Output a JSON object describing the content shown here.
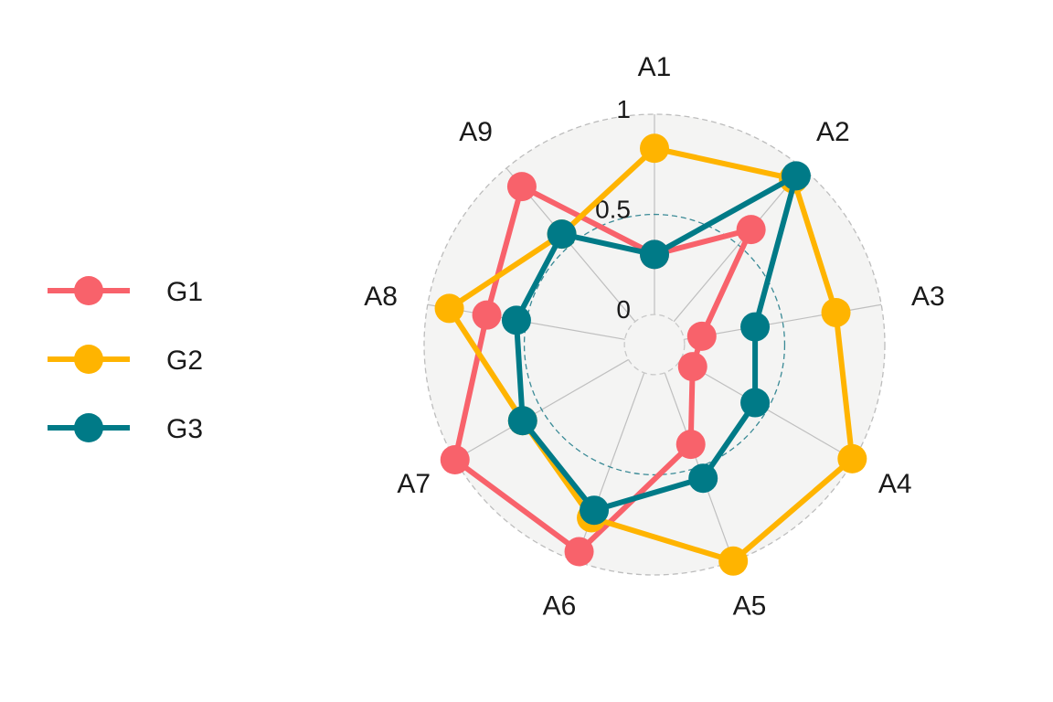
{
  "chart_data": {
    "type": "radar",
    "title": "",
    "axes": [
      "A1",
      "A2",
      "A3",
      "A4",
      "A5",
      "A6",
      "A7",
      "A8",
      "A9"
    ],
    "ylim": [
      -0.15,
      1
    ],
    "grid_labels": [
      "0",
      "0.5",
      "1"
    ],
    "grid_values": [
      0,
      0.5,
      1
    ],
    "legend_position": "left",
    "series": [
      {
        "name": "G1",
        "color": "#F8626B",
        "values": [
          0.3,
          0.6,
          0.09,
          0.07,
          0.38,
          0.95,
          1.0,
          0.7,
          0.88
        ]
      },
      {
        "name": "G2",
        "color": "#FFB400",
        "values": [
          0.83,
          0.93,
          0.77,
          0.99,
          1.0,
          0.77,
          0.61,
          0.89,
          0.57
        ]
      },
      {
        "name": "G3",
        "color": "#007A87",
        "values": [
          0.3,
          0.95,
          0.36,
          0.43,
          0.56,
          0.73,
          0.61,
          0.55,
          0.57
        ]
      }
    ]
  }
}
